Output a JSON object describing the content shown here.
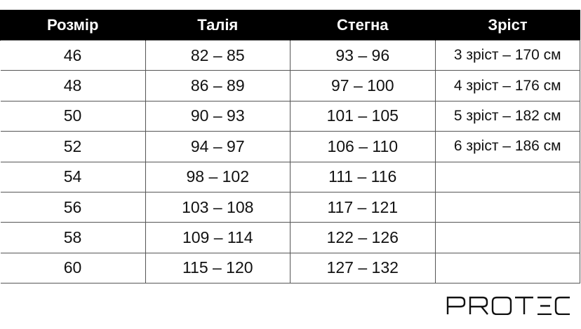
{
  "table": {
    "headers": [
      "Розмір",
      "Талія",
      "Стегна",
      "Зріст"
    ],
    "rows": [
      [
        "46",
        "82 – 85",
        "93 – 96",
        "3 зріст – 170 см"
      ],
      [
        "48",
        "86 – 89",
        "97 – 100",
        "4 зріст – 176 см"
      ],
      [
        "50",
        "90 – 93",
        "101 – 105",
        "5 зріст – 182 см"
      ],
      [
        "52",
        "94 – 97",
        "106 – 110",
        "6 зріст – 186 см"
      ],
      [
        "54",
        "98 – 102",
        "111 – 116",
        ""
      ],
      [
        "56",
        "103 – 108",
        "117 – 121",
        ""
      ],
      [
        "58",
        "109 – 114",
        "122 – 126",
        ""
      ],
      [
        "60",
        "115 – 120",
        "127 – 132",
        ""
      ]
    ]
  },
  "logo": {
    "text": "PROTEC"
  },
  "colors": {
    "header_bg": "#000000",
    "header_text": "#ffffff"
  }
}
